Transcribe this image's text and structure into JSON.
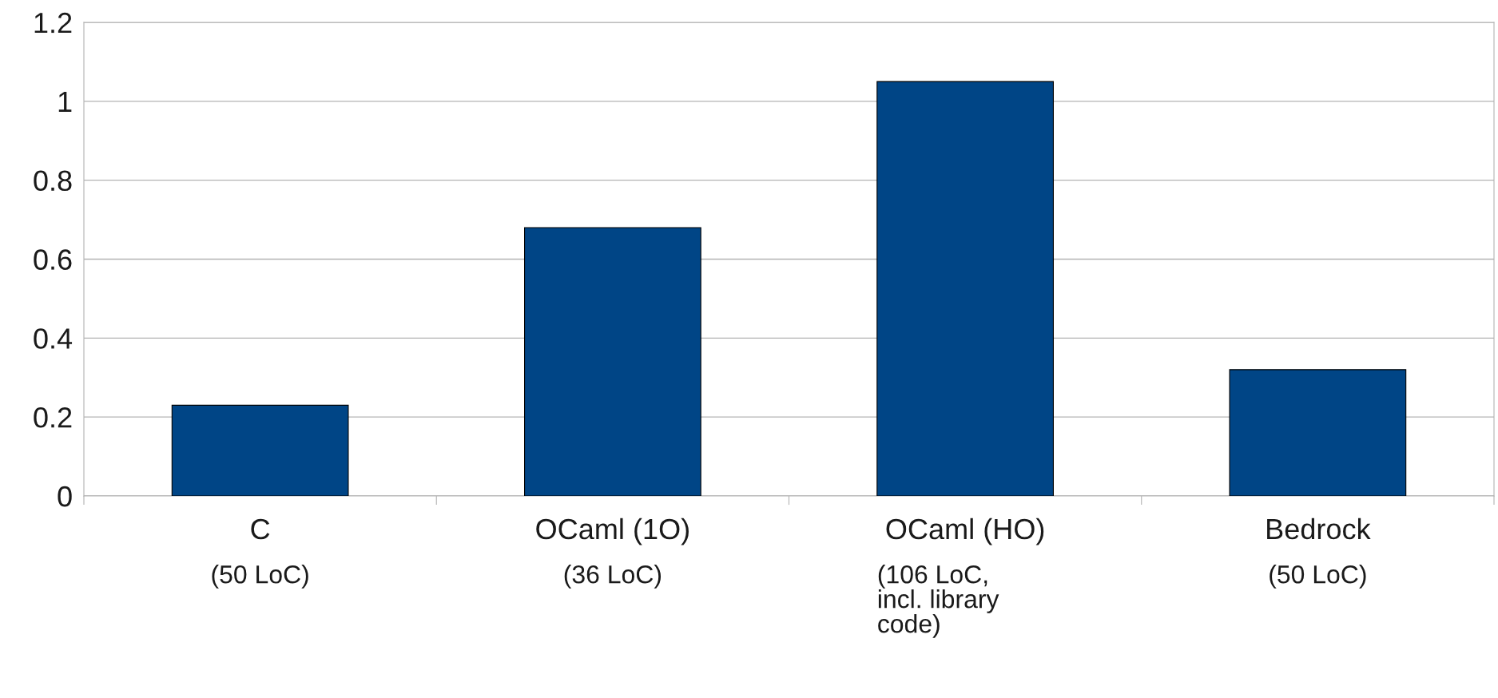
{
  "chart_data": {
    "type": "bar",
    "categories": [
      "C\n(50 LoC)",
      "OCaml (1O)\n(36 LoC)",
      "OCaml (HO)\n(106 LoC,\nincl. library\ncode)",
      "Bedrock\n(50 LoC)"
    ],
    "values": [
      0.23,
      0.68,
      1.05,
      0.32
    ],
    "color": "#004586",
    "ylim": [
      0,
      1.2
    ],
    "yticks": [
      0,
      0.2,
      0.4,
      0.6,
      0.8,
      1,
      1.2
    ],
    "grid": "y",
    "legend": false
  }
}
